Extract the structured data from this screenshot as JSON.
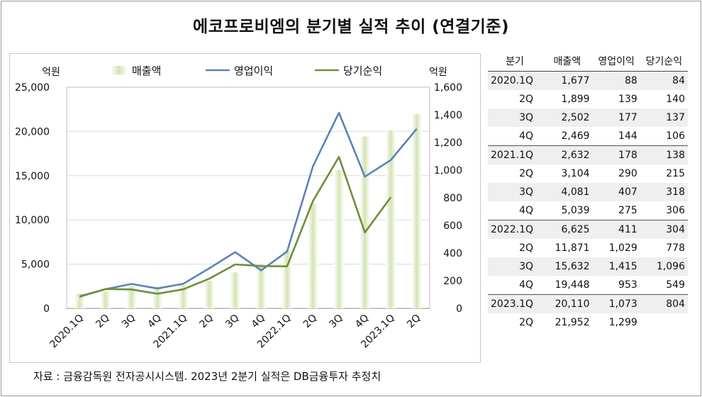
{
  "title": "에코프로비엠의 분기별 실적 추이 (연결기준)",
  "source_note": "자료 : 금융감독원 전자공시시스템. 2023년 2분기 실적은 DB금융투자 추정치",
  "chart_data": {
    "type": "bar",
    "categories": [
      "2020.1Q",
      "2Q",
      "3Q",
      "4Q",
      "2021.1Q",
      "2Q",
      "3Q",
      "4Q",
      "2022.1Q",
      "2Q",
      "3Q",
      "4Q",
      "2023.1Q",
      "2Q"
    ],
    "left_axis": {
      "unit_label": "억원",
      "min": 0,
      "max": 25000,
      "ticks": [
        "0",
        "5,000",
        "10,000",
        "15,000",
        "20,000",
        "25,000"
      ]
    },
    "right_axis": {
      "unit_label": "억원",
      "min": 0,
      "max": 1600,
      "ticks": [
        "0",
        "200",
        "400",
        "600",
        "800",
        "1,000",
        "1,200",
        "1,400",
        "1,600"
      ]
    },
    "series": [
      {
        "name": "매출액",
        "type": "bar",
        "axis": "left",
        "color": "#d4e4b4",
        "values": [
          1677,
          1899,
          2502,
          2469,
          2632,
          3104,
          4081,
          5039,
          6625,
          11871,
          15632,
          19448,
          20110,
          21952
        ]
      },
      {
        "name": "영업이익",
        "type": "line",
        "axis": "right",
        "color": "#5b83b8",
        "values": [
          88,
          139,
          177,
          144,
          178,
          290,
          407,
          275,
          411,
          1029,
          1415,
          953,
          1073,
          1299
        ]
      },
      {
        "name": "당기순익",
        "type": "line",
        "axis": "right",
        "color": "#6f8f3a",
        "values": [
          84,
          140,
          137,
          106,
          138,
          215,
          318,
          306,
          304,
          778,
          1096,
          549,
          804,
          null
        ]
      }
    ],
    "grid": "horizontal",
    "legend": "top"
  },
  "table": {
    "headers": [
      "분기",
      "매출액",
      "영업이익",
      "당기순익"
    ],
    "rows": [
      [
        "2020.1Q",
        "1,677",
        "88",
        "84"
      ],
      [
        "2Q",
        "1,899",
        "139",
        "140"
      ],
      [
        "3Q",
        "2,502",
        "177",
        "137"
      ],
      [
        "4Q",
        "2,469",
        "144",
        "106"
      ],
      [
        "2021.1Q",
        "2,632",
        "178",
        "138"
      ],
      [
        "2Q",
        "3,104",
        "290",
        "215"
      ],
      [
        "3Q",
        "4,081",
        "407",
        "318"
      ],
      [
        "4Q",
        "5,039",
        "275",
        "306"
      ],
      [
        "2022.1Q",
        "6,625",
        "411",
        "304"
      ],
      [
        "2Q",
        "11,871",
        "1,029",
        "778"
      ],
      [
        "3Q",
        "15,632",
        "1,415",
        "1,096"
      ],
      [
        "4Q",
        "19,448",
        "953",
        "549"
      ],
      [
        "2023.1Q",
        "20,110",
        "1,073",
        "804"
      ],
      [
        "2Q",
        "21,952",
        "1,299",
        ""
      ]
    ]
  }
}
